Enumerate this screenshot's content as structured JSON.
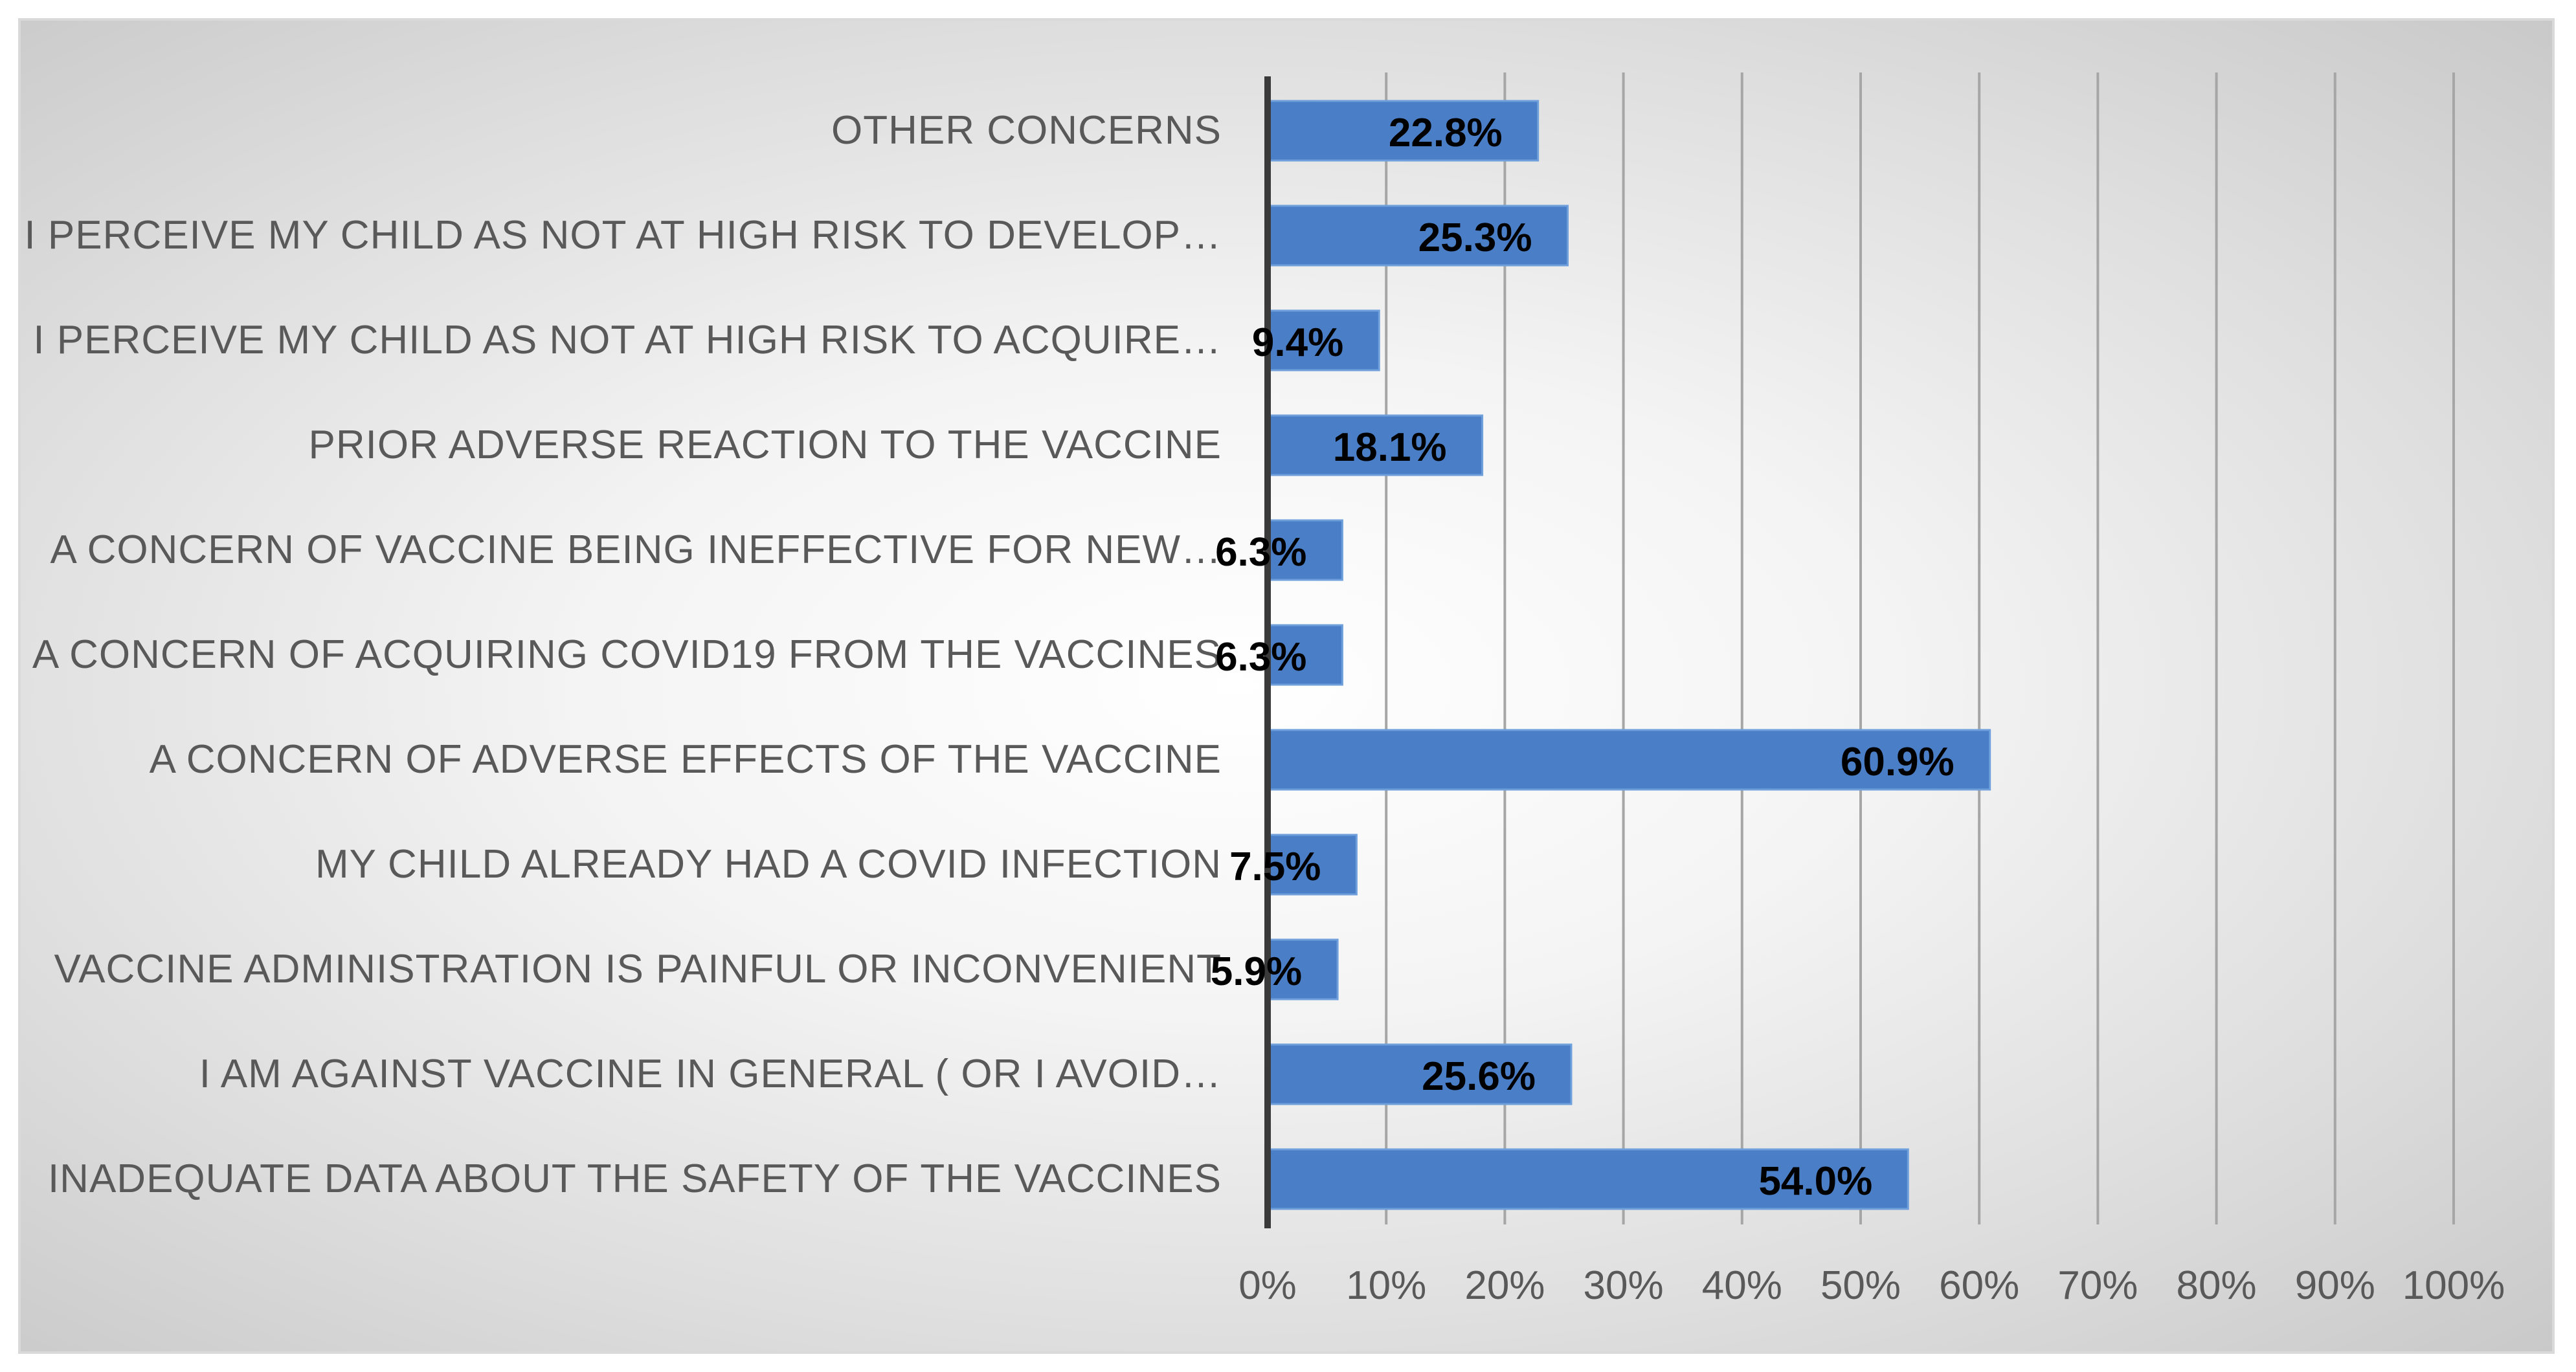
{
  "chart_data": {
    "type": "bar",
    "orientation": "horizontal",
    "title": "",
    "xlabel": "",
    "ylabel": "",
    "xlim": [
      0,
      100
    ],
    "x_ticks": [
      "0%",
      "10%",
      "20%",
      "30%",
      "40%",
      "50%",
      "60%",
      "70%",
      "80%",
      "90%",
      "100%"
    ],
    "grid": true,
    "bar_color": "#4a7fc8",
    "bar_edge_color": "#6fa0dc",
    "categories": [
      "OTHER CONCERNS",
      "I PERCEIVE MY CHILD AS NOT AT HIGH RISK TO DEVELOP…",
      "I PERCEIVE MY CHILD AS NOT AT HIGH RISK TO ACQUIRE…",
      "PRIOR ADVERSE REACTION TO THE VACCINE",
      "A CONCERN OF VACCINE BEING INEFFECTIVE FOR NEW…",
      "A CONCERN OF ACQUIRING COVID19 FROM THE VACCINES",
      "A CONCERN OF ADVERSE EFFECTS OF THE VACCINE",
      "MY CHILD ALREADY HAD A COVID INFECTION",
      "VACCINE ADMINISTRATION IS PAINFUL OR INCONVENIENT",
      "I AM AGAINST VACCINE IN GENERAL ( OR I AVOID…",
      "INADEQUATE DATA ABOUT THE SAFETY OF THE VACCINES"
    ],
    "values": [
      22.8,
      25.3,
      9.4,
      18.1,
      6.3,
      6.3,
      60.9,
      7.5,
      5.9,
      25.6,
      54.0
    ],
    "data_labels": [
      "22.8%",
      "25.3%",
      "9.4%",
      "18.1%",
      "6.3%",
      "6.3%",
      "60.9%",
      "7.5%",
      "5.9%",
      "25.6%",
      "54.0%"
    ]
  }
}
